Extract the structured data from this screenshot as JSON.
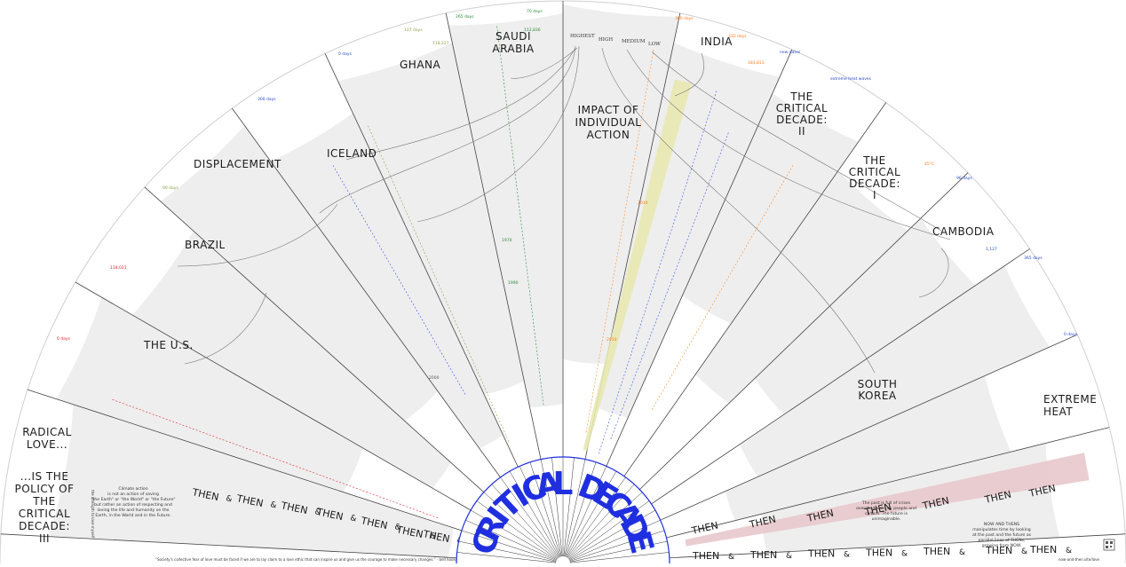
{
  "center_title": "CRITICAL DECADE",
  "impact": {
    "title_lines": [
      "IMPACT OF",
      "INDIVIDUAL",
      "ACTION"
    ],
    "levels": [
      "HIGHEST",
      "HIGH",
      "MEDIUM",
      "LOW"
    ]
  },
  "left_sections": {
    "radical_love": [
      "RADICAL",
      "LOVE..."
    ],
    "policy": [
      "...IS THE",
      "POLICY OF",
      "THE",
      "CRITICAL",
      "DECADE:",
      "III"
    ]
  },
  "countries": [
    {
      "name": [
        "THE U.S."
      ]
    },
    {
      "name": [
        "BRAZIL"
      ]
    },
    {
      "name": [
        "DISPLACEMENT"
      ]
    },
    {
      "name": [
        "ICELAND"
      ]
    },
    {
      "name": [
        "GHANA"
      ]
    },
    {
      "name": [
        "SAUDI",
        "ARABIA"
      ]
    },
    {
      "name": [
        "INDIA"
      ]
    },
    {
      "name": [
        "THE",
        "CRITICAL",
        "DECADE:",
        "II"
      ]
    },
    {
      "name": [
        "THE",
        "CRITICAL",
        "DECADE:",
        "I"
      ]
    },
    {
      "name": [
        "CAMBODIA"
      ]
    },
    {
      "name": [
        "SOUTH",
        "KOREA"
      ]
    },
    {
      "name": [
        "EXTREME",
        "HEAT"
      ]
    }
  ],
  "bottom": {
    "then_word": "THEN",
    "amp": "&",
    "now_word": "NOW",
    "quote": "\"Society's collective fear of love must be faced if we are to lay claim to a love ethic that can inspire us and give us the courage to make necessary changes.\" - bell hooks",
    "footer_right": "now-and-then.site/love",
    "left_paragraph": [
      "Climate action",
      "is not an action of saving",
      "\"the Earth\" or \"the World\" or \"the Future\"",
      "but rather an action of respecting and",
      "loving the life and humanity on the",
      "Earth, in the World and in the Future."
    ],
    "right_paragraph": [
      "The past is full of crises",
      "overshadowed by people and",
      "culture. The future is",
      "unimaginable."
    ],
    "far_right_paragraph": [
      "NOW AND THENS",
      "manipulates time by looking",
      "at the past and the future as",
      "parallel lines of THENs,",
      "growing from NOW."
    ],
    "vertical_note": "the strength to love myself"
  },
  "markers": {
    "saudi_days": "70 days",
    "saudi_days2": "265 days",
    "saudi_num": "112,836",
    "ghana_days": "127 days",
    "ghana_num": "118,227",
    "iceland_days": "0 days",
    "displacement_days": "300 days",
    "india_days": "300 days",
    "india_days2": "332 days",
    "india_num": "183,813",
    "sk_days": "365 days",
    "cambodia_days": "96 days",
    "cambodia_num": "1,127",
    "heat_days": "0 days",
    "brazil_days": "90 days",
    "us_days": "0 days",
    "us_num": "118,021",
    "year_1970": "1970",
    "year_1990": "1990",
    "year_2000": "2000",
    "year_2030": "2030",
    "year_2050": "2050",
    "heat_temp": "45°C",
    "decade_tag": "new dates",
    "decade_tag2": "extreme heat waves"
  }
}
